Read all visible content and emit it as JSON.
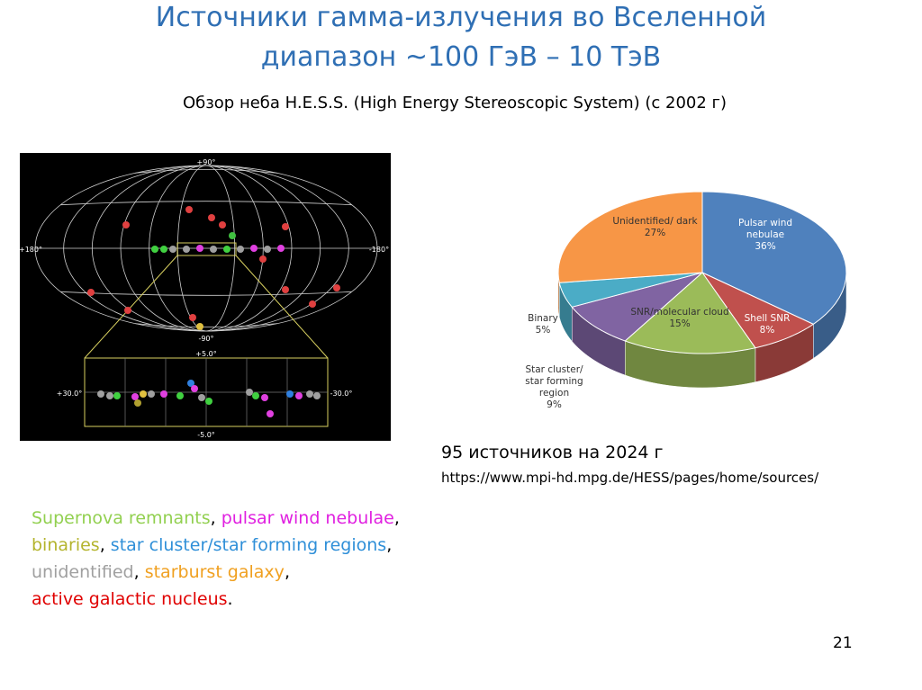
{
  "header": {
    "title_line1": "Источники гамма-излучения во Вселенной",
    "title_line2": "диапазон ~100 ГэВ – 10 ТэВ",
    "subtitle": "Обзор неба H.E.S.S. (High Energy Stereoscopic System) (c 2002 г)"
  },
  "sky_map": {
    "labels": [
      "+90°",
      "-90°",
      "+180°",
      "-180°",
      "+5.0°",
      "-5.0°",
      "+30.0°",
      "-30.0°"
    ]
  },
  "chart_data": {
    "type": "pie",
    "categories": [
      "Pulsar wind nebulae",
      "Shell SNR",
      "SNR/molecular cloud",
      "Star cluster/ star forming region",
      "Binary",
      "Unidentified/ dark"
    ],
    "values": [
      36,
      8,
      15,
      9,
      5,
      27
    ],
    "value_labels": [
      "36%",
      "8%",
      "15%",
      "9%",
      "5%",
      "27%"
    ],
    "colors": [
      "#4f81bd",
      "#c0504d",
      "#9bbb59",
      "#8064a2",
      "#4bacc6",
      "#f79646"
    ]
  },
  "sources_note": {
    "count": "95 источников на 2024 г",
    "url": "https://www.mpi-hd.mpg.de/HESS/pages/home/sources/"
  },
  "legend_text": {
    "lines": [
      [
        {
          "text": "Supernova remnants",
          "color": "#92d050"
        },
        {
          "text": ", ",
          "color": "#000000"
        },
        {
          "text": "pulsar wind nebulae",
          "color": "#e020e0"
        },
        {
          "text": ",",
          "color": "#000000"
        }
      ],
      [
        {
          "text": "binaries",
          "color": "#b4b42d"
        },
        {
          "text": ", ",
          "color": "#000000"
        },
        {
          "text": "star cluster/star forming regions",
          "color": "#2f8fd8"
        },
        {
          "text": ",",
          "color": "#000000"
        }
      ],
      [
        {
          "text": "unidentified",
          "color": "#a0a0a0"
        },
        {
          "text": ", ",
          "color": "#000000"
        },
        {
          "text": "starburst galaxy",
          "color": "#f0a020"
        },
        {
          "text": ",",
          "color": "#000000"
        }
      ],
      [
        {
          "text": "active galactic nucleus",
          "color": "#e00000"
        },
        {
          "text": ".",
          "color": "#000000"
        }
      ]
    ]
  },
  "slide_number": "21"
}
